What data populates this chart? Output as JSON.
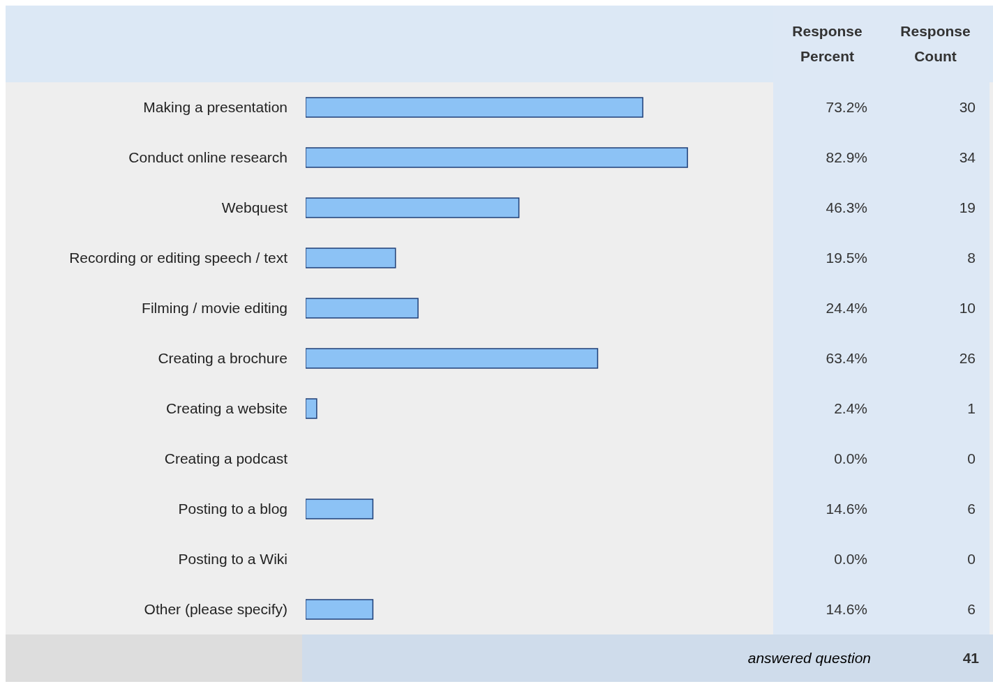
{
  "chart_data": {
    "type": "bar",
    "orientation": "horizontal",
    "categories": [
      "Making a presentation",
      "Conduct online research",
      "Webquest",
      "Recording or editing speech / text",
      "Filming / movie editing",
      "Creating a brochure",
      "Creating a website",
      "Creating a podcast",
      "Posting to a blog",
      "Posting to a Wiki",
      "Other (please specify)"
    ],
    "values": [
      73.2,
      82.9,
      46.3,
      19.5,
      24.4,
      63.4,
      2.4,
      0.0,
      14.6,
      0.0,
      14.6
    ],
    "value_labels": [
      "73.2%",
      "82.9%",
      "46.3%",
      "19.5%",
      "24.4%",
      "63.4%",
      "2.4%",
      "0.0%",
      "14.6%",
      "0.0%",
      "14.6%"
    ],
    "color": "#8cc2f5",
    "tick_labels": "y",
    "grid": false,
    "legend": false,
    "annotations": [
      "Response Percent",
      "Response Count",
      "30",
      "34",
      "19",
      "8",
      "10",
      "26",
      "1",
      "0",
      "6",
      "0",
      "6",
      "answered question",
      "41"
    ]
  }
}
